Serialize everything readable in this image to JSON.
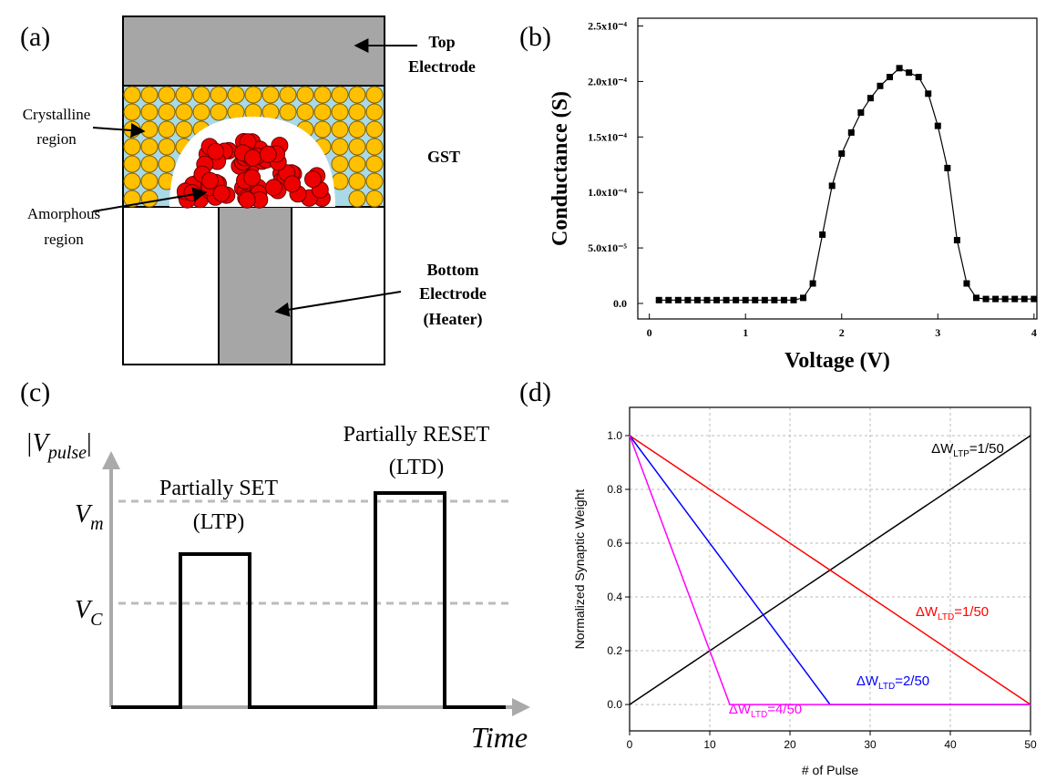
{
  "panel_labels": [
    "(a)",
    "(b)",
    "(c)",
    "(d)"
  ],
  "diagram_a": {
    "top_electrode": [
      "Top",
      "Electrode"
    ],
    "crystalline": [
      "Crystalline",
      "region"
    ],
    "gst": "GST",
    "amorphous": [
      "Amorphous",
      "region"
    ],
    "bottom_electrode": [
      "Bottom",
      "Electrode",
      "(Heater)"
    ]
  },
  "diagram_c": {
    "y_axis": [
      "|V",
      "pulse",
      "|"
    ],
    "vm": [
      "V",
      "m"
    ],
    "vc": [
      "V",
      "C"
    ],
    "set": [
      "Partially SET",
      "(LTP)"
    ],
    "reset": [
      "Partially RESET",
      "(LTD)"
    ],
    "time": "Time"
  },
  "chart_data": [
    {
      "type": "line",
      "x_label": "Voltage (V)",
      "y_label": "Conductance (S)",
      "x": [
        0.1,
        0.2,
        0.3,
        0.4,
        0.5,
        0.6,
        0.7,
        0.8,
        0.9,
        1.0,
        1.1,
        1.2,
        1.3,
        1.4,
        1.5,
        1.6,
        1.7,
        1.8,
        1.9,
        2.0,
        2.1,
        2.2,
        2.3,
        2.4,
        2.5,
        2.6,
        2.7,
        2.8,
        2.9,
        3.0,
        3.1,
        3.2,
        3.3,
        3.4,
        3.5,
        3.6,
        3.7,
        3.8,
        3.9,
        4.0
      ],
      "series": [
        {
          "color": "#000000",
          "marker": "square",
          "values": [
            3e-06,
            3e-06,
            3e-06,
            3e-06,
            3e-06,
            3e-06,
            3e-06,
            3e-06,
            3e-06,
            3e-06,
            3e-06,
            3e-06,
            3e-06,
            3e-06,
            3e-06,
            5e-06,
            1.8e-05,
            6.2e-05,
            0.000106,
            0.000135,
            0.000154,
            0.000172,
            0.000185,
            0.000196,
            0.000204,
            0.000212,
            0.000208,
            0.000204,
            0.000189,
            0.00016,
            0.000122,
            5.7e-05,
            1.8e-05,
            5e-06,
            4e-06,
            4e-06,
            4e-06,
            4e-06,
            4e-06,
            4e-06
          ]
        }
      ],
      "xlim": [
        -0.12,
        4.03
      ],
      "ylim": [
        -1.4e-05,
        0.000257
      ],
      "xticks": [
        0,
        1,
        2,
        3,
        4
      ],
      "yticks": [
        {
          "value": 0,
          "label": "0.0"
        },
        {
          "value": 5e-05,
          "label": "5.0x10⁻⁵"
        },
        {
          "value": 0.0001,
          "label": "1.0x10⁻⁴"
        },
        {
          "value": 0.00015,
          "label": "1.5x10⁻⁴"
        },
        {
          "value": 0.0002,
          "label": "2.0x10⁻⁴"
        },
        {
          "value": 0.00025,
          "label": "2.5x10⁻⁴"
        }
      ],
      "grid": false
    },
    {
      "type": "line",
      "x_label": "# of Pulse",
      "y_label": "Normalized Synaptic Weight",
      "series": [
        {
          "label": [
            "ΔW",
            "LTP",
            "=1/50"
          ],
          "color": "#000000",
          "x": [
            0,
            50
          ],
          "values": [
            0,
            1
          ]
        },
        {
          "label": [
            "ΔW",
            "LTD",
            "=1/50"
          ],
          "color": "#ff0000",
          "x": [
            0,
            50
          ],
          "values": [
            1,
            0
          ]
        },
        {
          "label": [
            "ΔW",
            "LTD",
            "=2/50"
          ],
          "color": "#0000ff",
          "x": [
            0,
            25,
            50
          ],
          "values": [
            1,
            0,
            0
          ]
        },
        {
          "label": [
            "ΔW",
            "LTD",
            "=4/50"
          ],
          "color": "#ff00ff",
          "x": [
            0,
            12.5,
            50
          ],
          "values": [
            1,
            0,
            0
          ]
        }
      ],
      "xlim": [
        0,
        50
      ],
      "ylim": [
        -0.098,
        1.105
      ],
      "xticks": [
        0,
        10,
        20,
        30,
        40,
        50
      ],
      "yticks": [
        {
          "value": 0,
          "label": "0.0"
        },
        0.2,
        0.4,
        0.6,
        0.8,
        {
          "value": 1,
          "label": "1.0"
        }
      ],
      "grid": true
    }
  ]
}
